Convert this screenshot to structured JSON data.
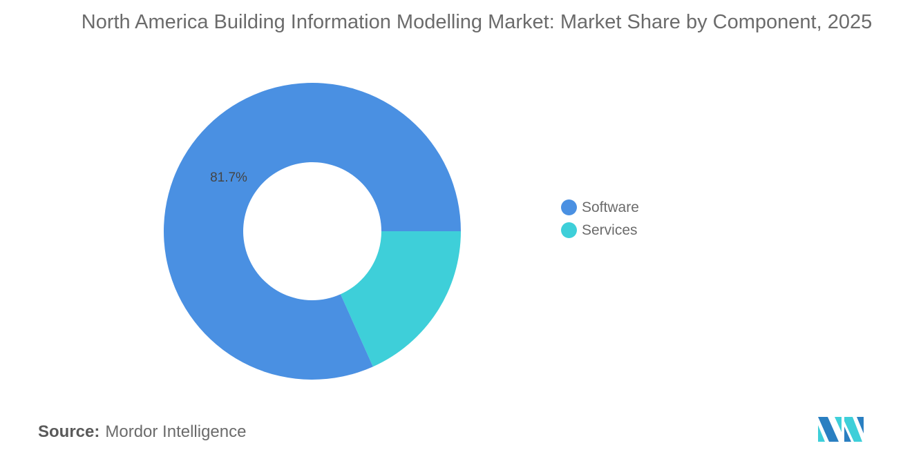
{
  "chart_data": {
    "type": "pie",
    "donut": true,
    "title": "North America Building Information Modelling Market: Market Share by Component, 2025",
    "categories": [
      "Software",
      "Services"
    ],
    "values": [
      81.7,
      18.3
    ],
    "colors": [
      "#4a90e2",
      "#3ecfd9"
    ],
    "data_labels": [
      "81.7%",
      ""
    ],
    "legend_position": "right"
  },
  "source": {
    "label": "Source:",
    "value": "Mordor Intelligence"
  },
  "logo": {
    "text": "Mordor Intelligence"
  }
}
